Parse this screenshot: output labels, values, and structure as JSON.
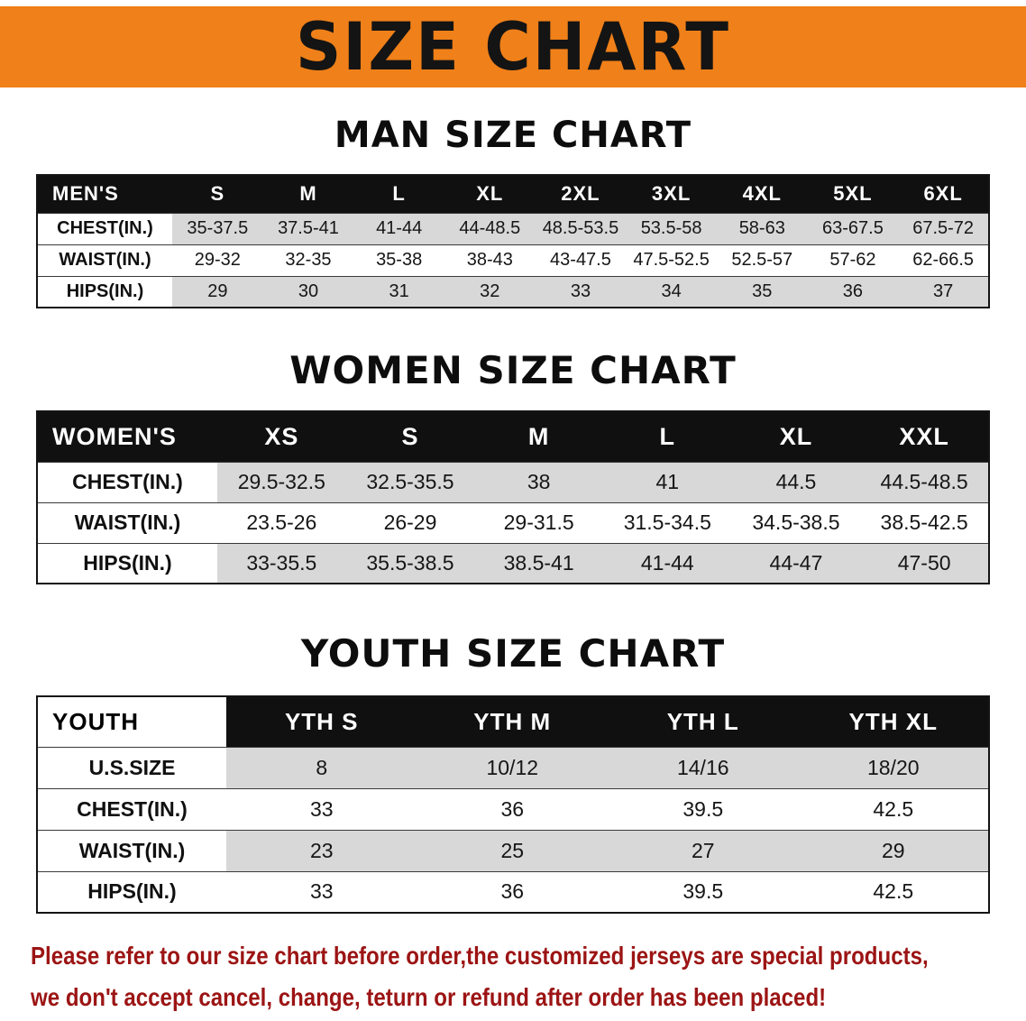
{
  "banner": {
    "title": "SIZE CHART",
    "bg_color": "#F08019"
  },
  "sections": [
    {
      "id": "men",
      "heading": "MAN SIZE CHART",
      "table": {
        "header": [
          "MEN'S",
          "S",
          "M",
          "L",
          "XL",
          "2XL",
          "3XL",
          "4XL",
          "5XL",
          "6XL"
        ],
        "rows": [
          [
            "CHEST(IN.)",
            "35-37.5",
            "37.5-41",
            "41-44",
            "44-48.5",
            "48.5-53.5",
            "53.5-58",
            "58-63",
            "63-67.5",
            "67.5-72"
          ],
          [
            "WAIST(IN.)",
            "29-32",
            "32-35",
            "35-38",
            "38-43",
            "43-47.5",
            "47.5-52.5",
            "52.5-57",
            "57-62",
            "62-66.5"
          ],
          [
            "HIPS(IN.)",
            "29",
            "30",
            "31",
            "32",
            "33",
            "34",
            "35",
            "36",
            "37"
          ]
        ]
      }
    },
    {
      "id": "women",
      "heading": "WOMEN SIZE CHART",
      "table": {
        "header": [
          "WOMEN'S",
          "XS",
          "S",
          "M",
          "L",
          "XL",
          "XXL"
        ],
        "rows": [
          [
            "CHEST(IN.)",
            "29.5-32.5",
            "32.5-35.5",
            "38",
            "41",
            "44.5",
            "44.5-48.5"
          ],
          [
            "WAIST(IN.)",
            "23.5-26",
            "26-29",
            "29-31.5",
            "31.5-34.5",
            "34.5-38.5",
            "38.5-42.5"
          ],
          [
            "HIPS(IN.)",
            "33-35.5",
            "35.5-38.5",
            "38.5-41",
            "41-44",
            "44-47",
            "47-50"
          ]
        ]
      }
    },
    {
      "id": "youth",
      "heading": "YOUTH SIZE CHART",
      "table": {
        "header": [
          "YOUTH",
          "YTH S",
          "YTH M",
          "YTH L",
          "YTH XL"
        ],
        "rows": [
          [
            "U.S.SIZE",
            "8",
            "10/12",
            "14/16",
            "18/20"
          ],
          [
            "CHEST(IN.)",
            "33",
            "36",
            "39.5",
            "42.5"
          ],
          [
            "WAIST(IN.)",
            "23",
            "25",
            "27",
            "29"
          ],
          [
            "HIPS(IN.)",
            "33",
            "36",
            "39.5",
            "42.5"
          ]
        ]
      }
    }
  ],
  "footer": {
    "line1": "Please refer to our size chart before order,the customized jerseys are special products,",
    "line2": "we don't accept cancel, change, teturn or refund after order has been placed!",
    "text_color": "#9c1414"
  }
}
